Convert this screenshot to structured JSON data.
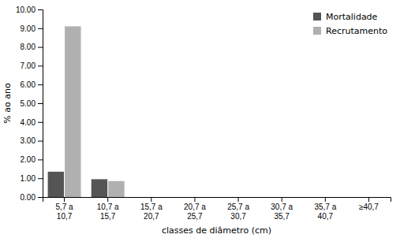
{
  "chart_data": {
    "type": "bar",
    "categories": [
      "5,7 a\n10,7",
      "10,7 a\n15,7",
      "15,7 a\n20,7",
      "20,7 a\n25,7",
      "25,7 a\n30,7",
      "30,7 a\n35,7",
      "35,7 a\n40,7",
      "≥40,7"
    ],
    "series": [
      {
        "name": "Mortalidade",
        "color": "#555555",
        "values": [
          1.35,
          0.95,
          0.0,
          0.0,
          0.0,
          0.0,
          0.0,
          0.0
        ]
      },
      {
        "name": "Recrutamento",
        "color": "#b0b0b0",
        "values": [
          9.1,
          0.85,
          0.0,
          0.0,
          0.0,
          0.0,
          0.0,
          0.0
        ]
      }
    ],
    "xlabel": "classes de diâmetro (cm)",
    "ylabel": "% ao ano",
    "ylim": [
      0,
      10.0
    ],
    "yticks": [
      {
        "value": 0.0,
        "label": "0.00"
      },
      {
        "value": 1.0,
        "label": "1.00"
      },
      {
        "value": 2.0,
        "label": "2.00"
      },
      {
        "value": 3.0,
        "label": "3.00"
      },
      {
        "value": 4.0,
        "label": "4.00"
      },
      {
        "value": 5.0,
        "label": "5.00"
      },
      {
        "value": 6.0,
        "label": "6.00"
      },
      {
        "value": 7.0,
        "label": "7.00"
      },
      {
        "value": 8.0,
        "label": "8.00"
      },
      {
        "value": 9.0,
        "label": "9.00"
      },
      {
        "value": 10.0,
        "label": "10.00"
      }
    ],
    "legend": "upper right",
    "grid": false
  }
}
